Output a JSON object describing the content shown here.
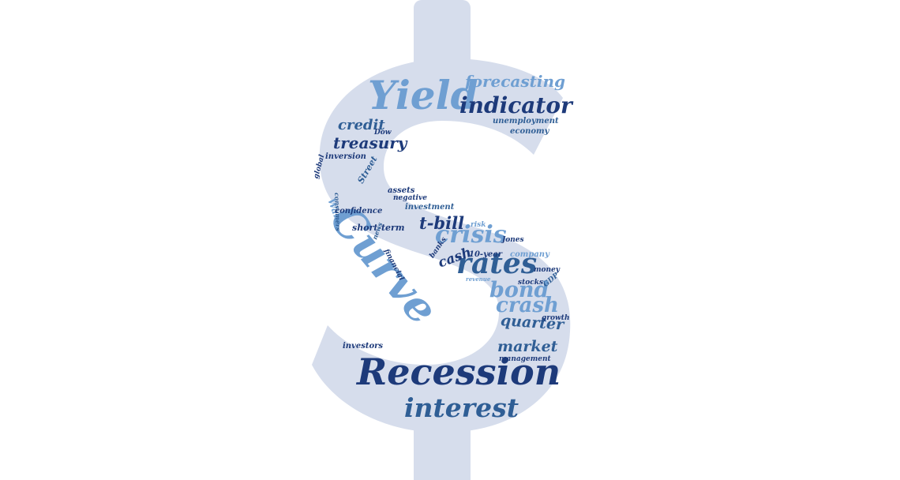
{
  "palette": {
    "background": "#ffffff",
    "symbol_fill": "#d6ddec",
    "dark_navy": "#1d3a7a",
    "medium_blue": "#2f5e95",
    "light_blue": "#6f9fd2"
  },
  "words": {
    "recession": "Recession",
    "curve": "Curve",
    "yield": "Yield",
    "rates": "rates",
    "interest": "interest",
    "crisis": "crisis",
    "indicator": "indicator",
    "bond": "bond",
    "crash": "crash",
    "forecasting": "forecasting",
    "treasury": "treasury",
    "market": "market",
    "quarter": "quarter",
    "credit": "credit",
    "t_bill": "t-bill",
    "cash": "cash",
    "unemployment": "unemployment",
    "economy": "economy",
    "dow": "Dow",
    "inversion": "inversion",
    "global": "global",
    "street": "Street",
    "wall": "Wall",
    "assets": "assets",
    "negative": "negative",
    "consumers": "consumers",
    "investment": "investment",
    "confidence": "confidence",
    "short_term": "short-term",
    "news": "news",
    "financial": "financial",
    "risk": "risk",
    "jones": "Jones",
    "banks": "banks",
    "ten_year": "10-year",
    "company": "company",
    "money": "money",
    "revenue": "revenue",
    "stocks": "stocks",
    "gdp": "GDP",
    "growth": "growth",
    "investors": "investors",
    "management": "management"
  }
}
